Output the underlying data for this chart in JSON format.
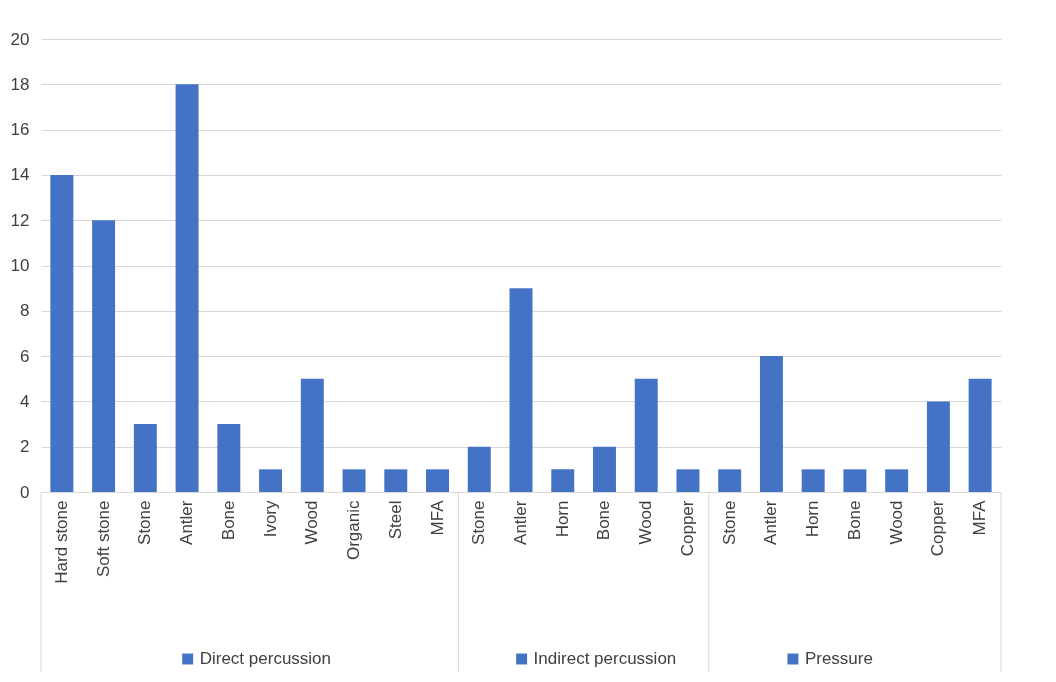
{
  "chart_data": {
    "type": "bar",
    "categories": [
      "Hard stone",
      "Soft stone",
      "Stone",
      "Antler",
      "Bone",
      "Ivory",
      "Wood",
      "Organic",
      "Steel",
      "MFA",
      "Stone",
      "Antler",
      "Horn",
      "Bone",
      "Wood",
      "Copper",
      "Stone",
      "Antler",
      "Horn",
      "Bone",
      "Wood",
      "Copper",
      "MFA"
    ],
    "series": [
      {
        "name": "Direct percussion",
        "color": "#4472c4",
        "values": [
          14,
          12,
          3,
          18,
          3,
          1,
          5,
          1,
          1,
          1,
          null,
          null,
          null,
          null,
          null,
          null,
          null,
          null,
          null,
          null,
          null,
          null,
          null
        ]
      },
      {
        "name": "Indirect percussion",
        "color": "#4472c4",
        "values": [
          null,
          null,
          null,
          null,
          null,
          null,
          null,
          null,
          null,
          null,
          2,
          9,
          1,
          2,
          5,
          1,
          null,
          null,
          null,
          null,
          null,
          null,
          null
        ]
      },
      {
        "name": "Pressure",
        "color": "#4472c4",
        "values": [
          null,
          null,
          null,
          null,
          null,
          null,
          null,
          null,
          null,
          null,
          null,
          null,
          null,
          null,
          null,
          null,
          1,
          6,
          1,
          1,
          1,
          4,
          5
        ]
      }
    ],
    "ylim": [
      0,
      20
    ],
    "yticks": [
      0,
      2,
      4,
      6,
      8,
      10,
      12,
      14,
      16,
      18,
      20
    ],
    "grid": "y",
    "legend": "bottom"
  }
}
